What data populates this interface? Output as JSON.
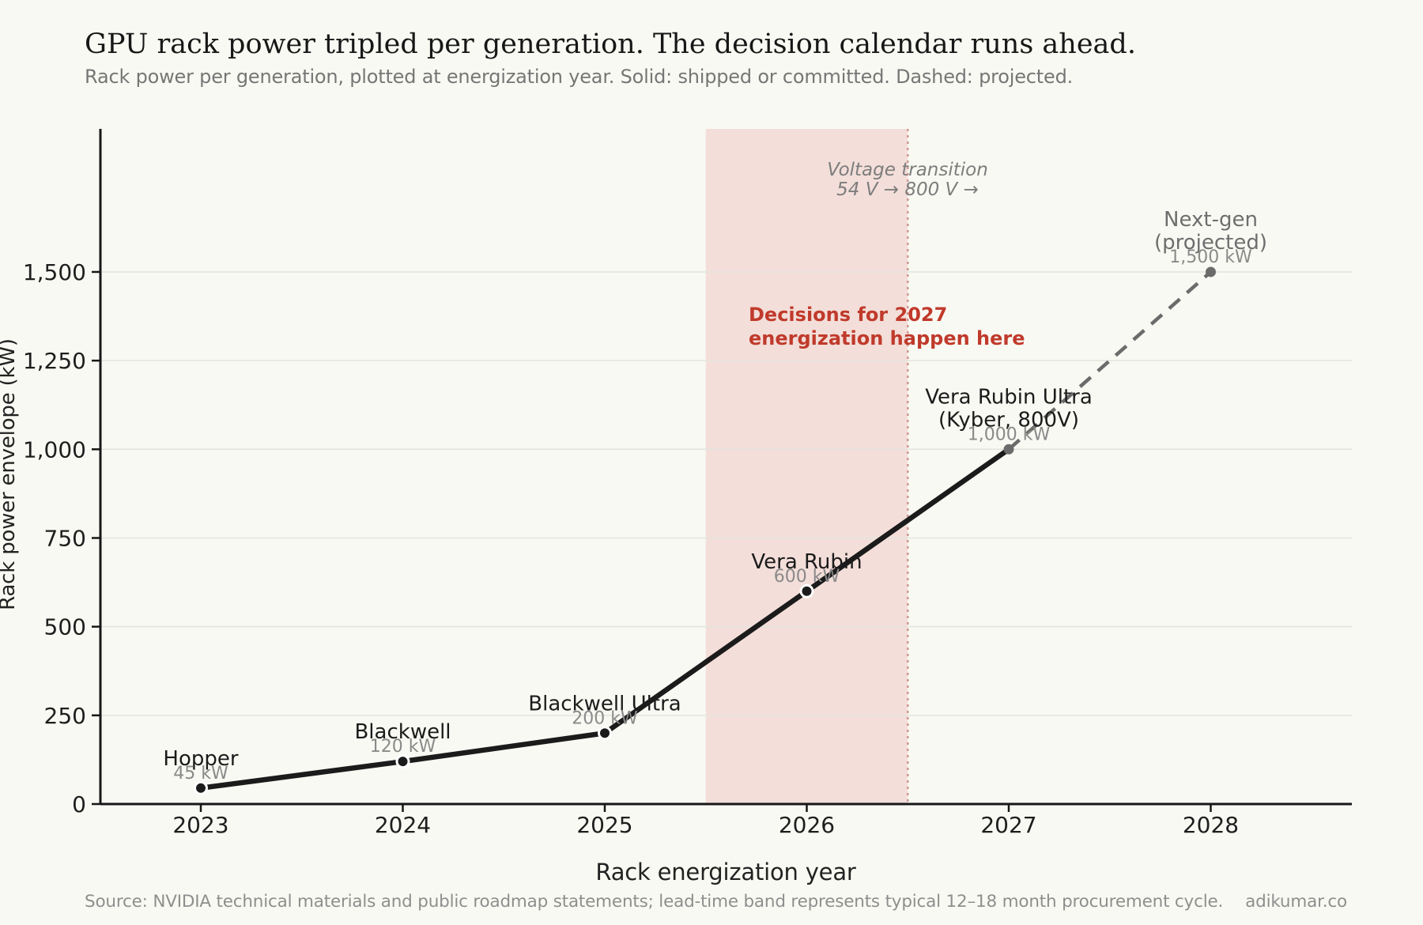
{
  "header": {
    "title": "GPU rack power tripled per generation. The decision calendar runs ahead.",
    "subtitle": "Rack power per generation, plotted at energization year. Solid: shipped or committed. Dashed: projected."
  },
  "annotations": {
    "voltage_note": {
      "lines": [
        "Voltage transition",
        "54 V → 800 V →"
      ]
    },
    "decision_note": {
      "lines": [
        "Decisions for 2027",
        "energization happen here"
      ]
    }
  },
  "footer": {
    "source": "Source: NVIDIA technical materials and public roadmap statements; lead-time band represents typical 12–18 month procurement cycle.",
    "brand": "adikumar.co"
  },
  "chart_data": {
    "type": "line",
    "title": "GPU rack power tripled per generation. The decision calendar runs ahead.",
    "xlabel": "Rack energization year",
    "ylabel": "Rack power envelope (kW)",
    "xlim": [
      2022.5,
      2028.7
    ],
    "ylim": [
      0,
      1900
    ],
    "grid": true,
    "legend": "none",
    "x_ticks": [
      {
        "value": 2023,
        "label": "2023"
      },
      {
        "value": 2024,
        "label": "2024"
      },
      {
        "value": 2025,
        "label": "2025"
      },
      {
        "value": 2026,
        "label": "2026"
      },
      {
        "value": 2027,
        "label": "2027"
      },
      {
        "value": 2028,
        "label": "2028"
      }
    ],
    "y_ticks": [
      {
        "value": 0,
        "label": "0"
      },
      {
        "value": 250,
        "label": "250"
      },
      {
        "value": 500,
        "label": "500"
      },
      {
        "value": 750,
        "label": "750"
      },
      {
        "value": 1000,
        "label": "1,000"
      },
      {
        "value": 1250,
        "label": "1,250"
      },
      {
        "value": 1500,
        "label": "1,500"
      }
    ],
    "band": {
      "x0": 2025.5,
      "x1": 2026.5,
      "meaning": "Decisions for 2027 energization happen here",
      "fill": "#f3ded9",
      "edge": "#cc9a92"
    },
    "series": [
      {
        "name": "Shipped or committed",
        "style": "solid",
        "color": "#1b1b1b",
        "marker_fill": "#1b1b1b",
        "marker_edge": "#ffffff",
        "points": [
          {
            "year": 2023,
            "kw": 45,
            "name_lines": [
              "Hopper"
            ],
            "value_label": "45 kW"
          },
          {
            "year": 2024,
            "kw": 120,
            "name_lines": [
              "Blackwell"
            ],
            "value_label": "120 kW"
          },
          {
            "year": 2025,
            "kw": 200,
            "name_lines": [
              "Blackwell Ultra"
            ],
            "value_label": "200 kW"
          },
          {
            "year": 2026,
            "kw": 600,
            "name_lines": [
              "Vera Rubin"
            ],
            "value_label": "600 kW"
          },
          {
            "year": 2027,
            "kw": 1000,
            "name_lines": [
              "Vera Rubin Ultra",
              "(Kyber, 800V)"
            ],
            "value_label": "1,000 kW",
            "marker": false
          }
        ]
      },
      {
        "name": "Projected",
        "style": "dashed",
        "color": "#6b6b6b",
        "marker_fill": "#6b6b6b",
        "points": [
          {
            "year": 2027,
            "kw": 1000
          },
          {
            "year": 2028,
            "kw": 1500,
            "name_lines": [
              "Next-gen",
              "(projected)"
            ],
            "value_label": "1,500 kW",
            "name_color": "#6e6e6e"
          }
        ]
      }
    ]
  }
}
